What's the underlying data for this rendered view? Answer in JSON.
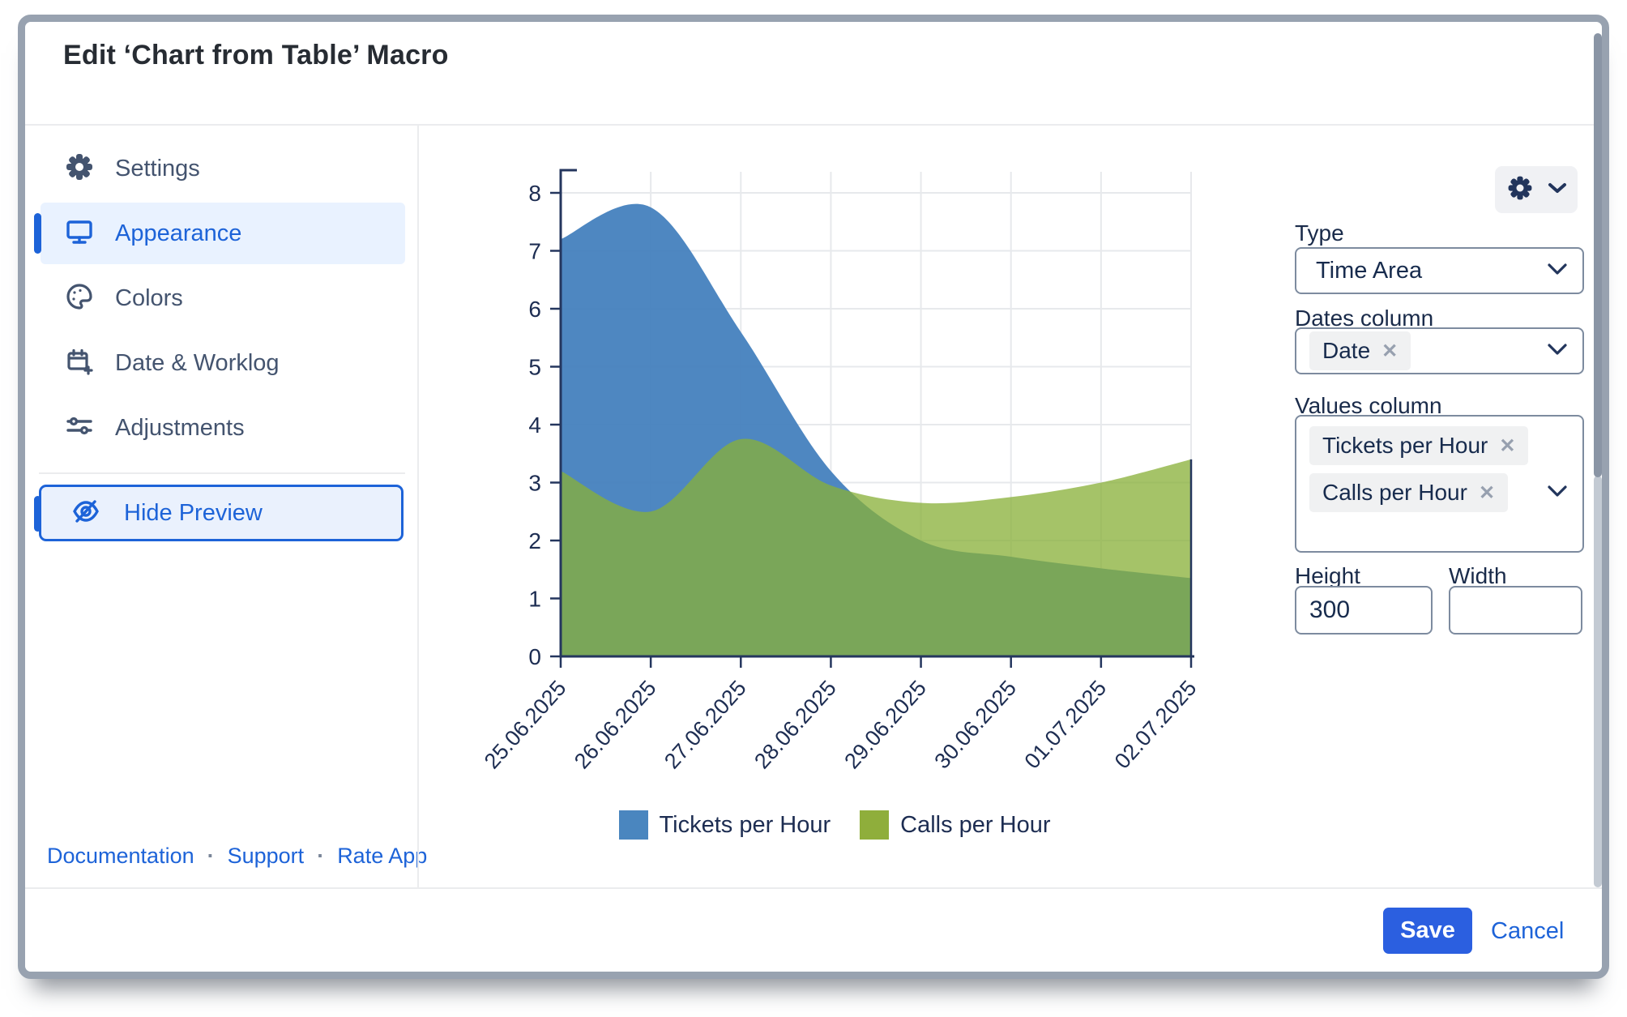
{
  "window": {
    "title": "Edit ‘Chart from Table’ Macro"
  },
  "sidebar": {
    "items": [
      {
        "label": "Settings",
        "icon": "gear"
      },
      {
        "label": "Appearance",
        "icon": "monitor",
        "active": true
      },
      {
        "label": "Colors",
        "icon": "palette"
      },
      {
        "label": "Date & Worklog",
        "icon": "calendar-plus"
      },
      {
        "label": "Adjustments",
        "icon": "sliders"
      }
    ],
    "hide_preview": {
      "label": "Hide Preview",
      "icon": "eye-off"
    },
    "footer_links": [
      {
        "label": "Documentation"
      },
      {
        "label": "Support"
      },
      {
        "label": "Rate App"
      }
    ],
    "link_separator": "·"
  },
  "preview": {
    "settings_button": {
      "icon": "gear-chevron"
    }
  },
  "panel": {
    "type": {
      "label": "Type",
      "value": "Time Area"
    },
    "dates_column": {
      "label": "Dates column",
      "tags": [
        {
          "label": "Date"
        }
      ]
    },
    "values_column": {
      "label": "Values column",
      "tags": [
        {
          "label": "Tickets per Hour"
        },
        {
          "label": "Calls per Hour"
        }
      ]
    },
    "height": {
      "label": "Height",
      "value": "300"
    },
    "width": {
      "label": "Width",
      "value": ""
    }
  },
  "footer": {
    "save": "Save",
    "cancel": "Cancel"
  },
  "icons": {
    "remove": "✕"
  },
  "chart_data": {
    "type": "area",
    "title": "",
    "categories": [
      "25.06.2025",
      "26.06.2025",
      "27.06.2025",
      "28.06.2025",
      "29.06.2025",
      "30.06.2025",
      "01.07.2025",
      "02.07.2025"
    ],
    "series": [
      {
        "name": "Tickets per Hour",
        "color": "#4A86BF",
        "fill": "#4380BD",
        "opacity": 0.94,
        "values": [
          7.2,
          7.75,
          5.6,
          3.2,
          2.0,
          1.72,
          1.52,
          1.35
        ]
      },
      {
        "name": "Calls per Hour",
        "color": "#8FAE3B",
        "fill": "#89B038",
        "opacity": 0.76,
        "values": [
          3.2,
          2.5,
          3.75,
          2.95,
          2.65,
          2.75,
          3.0,
          3.4
        ]
      }
    ],
    "xlabel": "",
    "ylabel": "",
    "ylim": [
      0,
      8
    ],
    "ytick_step": 1,
    "grid": true,
    "smooth": true,
    "legend_position": "bottom"
  }
}
